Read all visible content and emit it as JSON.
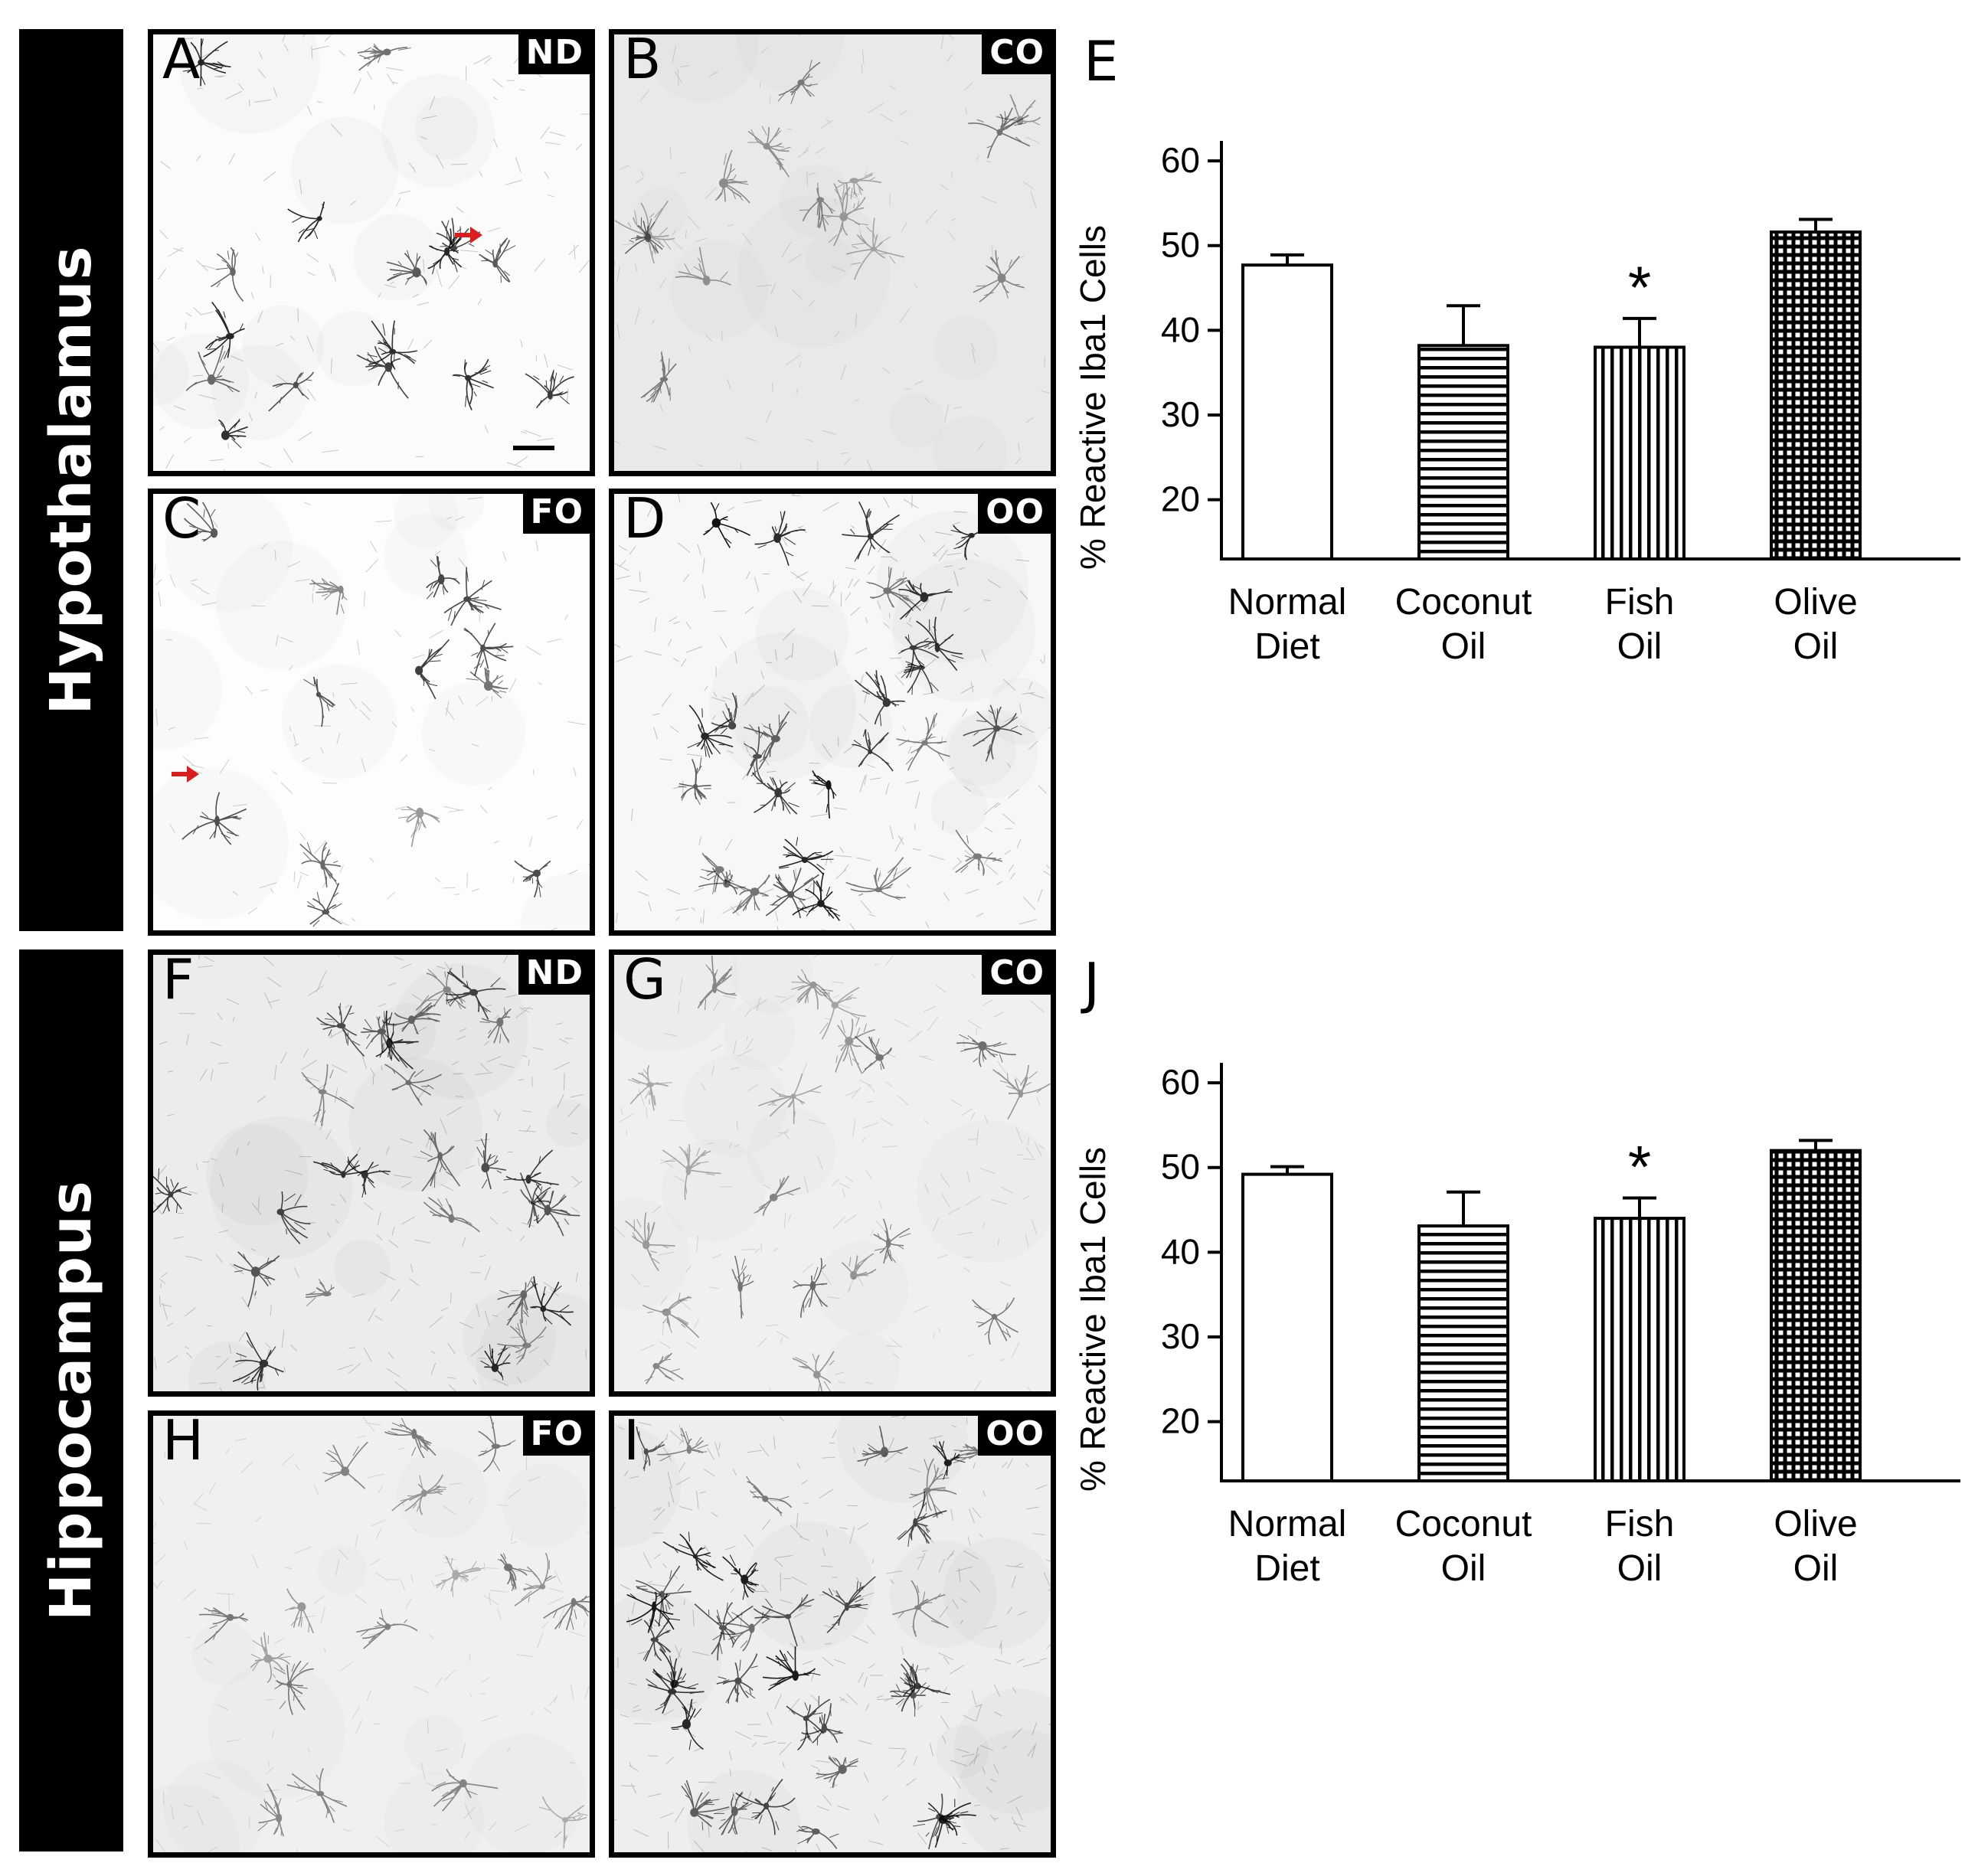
{
  "regions": [
    {
      "label": "Hypothalamus"
    },
    {
      "label": "Hippocampus"
    }
  ],
  "panels": [
    {
      "letter": "A",
      "diet": "ND",
      "shade": "#fbfbfb",
      "density": 16,
      "darkness": 0.95,
      "arrow": true
    },
    {
      "letter": "B",
      "diet": "CO",
      "shade": "#e9e9e9",
      "density": 14,
      "darkness": 0.6,
      "arrow": false
    },
    {
      "letter": "C",
      "diet": "FO",
      "shade": "#fdfdfd",
      "density": 13,
      "darkness": 0.85,
      "arrow": true
    },
    {
      "letter": "D",
      "diet": "OO",
      "shade": "#f7f7f7",
      "density": 28,
      "darkness": 1.0,
      "arrow": false
    },
    {
      "letter": "F",
      "diet": "ND",
      "shade": "#ececec",
      "density": 26,
      "darkness": 0.9,
      "arrow": false
    },
    {
      "letter": "G",
      "diet": "CO",
      "shade": "#f0f0f0",
      "density": 20,
      "darkness": 0.6,
      "arrow": false
    },
    {
      "letter": "H",
      "diet": "FO",
      "shade": "#f0f0f0",
      "density": 17,
      "darkness": 0.55,
      "arrow": false
    },
    {
      "letter": "I",
      "diet": "OO",
      "shade": "#eeeeee",
      "density": 34,
      "darkness": 0.95,
      "arrow": false
    }
  ],
  "annotation_colors": {
    "arrow": "#d81e1e",
    "frame": "#000000"
  },
  "chart_data": [
    {
      "panel_letter": "E",
      "type": "bar",
      "ylabel": "% Reactive Iba1 Cells",
      "ylim": [
        13,
        62
      ],
      "yticks": [
        20,
        30,
        40,
        50,
        60
      ],
      "categories": [
        "Normal Diet",
        "Coconut Oil",
        "Fish Oil",
        "Olive Oil"
      ],
      "category_lines": [
        [
          "Normal",
          "Diet"
        ],
        [
          "Coconut",
          "Oil"
        ],
        [
          "Fish",
          "Oil"
        ],
        [
          "Olive",
          "Oil"
        ]
      ],
      "values": [
        47.7,
        38.2,
        38.0,
        51.6
      ],
      "errors": [
        1.2,
        4.7,
        3.4,
        1.5
      ],
      "patterns": [
        "none",
        "horizontal",
        "vertical",
        "grid"
      ],
      "significance": [
        "",
        "",
        "*",
        ""
      ],
      "grid": false
    },
    {
      "panel_letter": "J",
      "type": "bar",
      "ylabel": "% Reactive Iba1 Cells",
      "ylim": [
        13,
        62
      ],
      "yticks": [
        20,
        30,
        40,
        50,
        60
      ],
      "categories": [
        "Normal Diet",
        "Coconut Oil",
        "Fish Oil",
        "Olive Oil"
      ],
      "category_lines": [
        [
          "Normal",
          "Diet"
        ],
        [
          "Coconut",
          "Oil"
        ],
        [
          "Fish",
          "Oil"
        ],
        [
          "Olive",
          "Oil"
        ]
      ],
      "values": [
        49.2,
        43.1,
        44.0,
        52.0
      ],
      "errors": [
        0.9,
        4.0,
        2.4,
        1.2
      ],
      "patterns": [
        "none",
        "horizontal",
        "vertical",
        "grid"
      ],
      "significance": [
        "",
        "",
        "*",
        ""
      ],
      "grid": false
    }
  ]
}
